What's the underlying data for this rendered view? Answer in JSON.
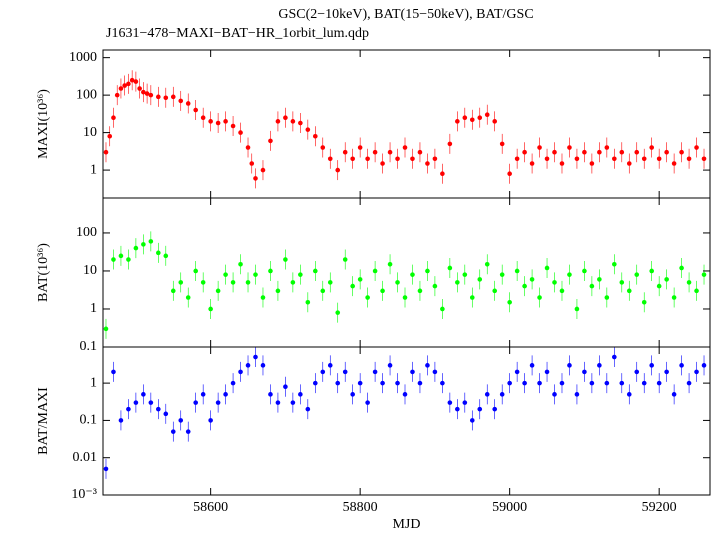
{
  "chart_data": [
    {
      "type": "scatter",
      "title": "GSC(2−10keV), BAT(15−50keV), BAT/GSC",
      "subtitle": "J1631−478−MAXI−BAT−HR_1orbit_lum.qdp",
      "ylabel": "MAXI(10³⁶)",
      "color": "#ff0000",
      "log_y": true,
      "xlim": [
        58456,
        59268
      ],
      "ylim": [
        0.18,
        1600
      ],
      "yticks": [
        1,
        10,
        100,
        1000
      ],
      "x": [
        58460,
        58465,
        58470,
        58475,
        58480,
        58485,
        58490,
        58495,
        58500,
        58505,
        58510,
        58515,
        58520,
        58530,
        58540,
        58550,
        58560,
        58570,
        58580,
        58590,
        58600,
        58610,
        58620,
        58630,
        58640,
        58650,
        58655,
        58660,
        58670,
        58680,
        58690,
        58700,
        58710,
        58720,
        58730,
        58740,
        58750,
        58760,
        58770,
        58780,
        58790,
        58800,
        58810,
        58820,
        58830,
        58840,
        58850,
        58860,
        58870,
        58880,
        58890,
        58900,
        58910,
        58920,
        58930,
        58940,
        58950,
        58960,
        58970,
        58980,
        58990,
        59000,
        59010,
        59020,
        59030,
        59040,
        59050,
        59060,
        59070,
        59080,
        59090,
        59100,
        59110,
        59120,
        59130,
        59140,
        59150,
        59160,
        59170,
        59180,
        59190,
        59200,
        59210,
        59220,
        59230,
        59240,
        59250,
        59260
      ],
      "values": [
        3,
        8,
        25,
        100,
        150,
        180,
        200,
        250,
        230,
        150,
        120,
        110,
        100,
        90,
        85,
        90,
        70,
        60,
        40,
        25,
        20,
        18,
        20,
        15,
        10,
        4,
        1.5,
        0.6,
        1,
        6,
        20,
        25,
        20,
        18,
        12,
        8,
        4,
        2,
        1,
        3,
        2,
        4,
        2,
        3,
        1.5,
        3,
        2,
        4,
        2,
        3,
        1.5,
        2,
        0.8,
        5,
        20,
        25,
        22,
        25,
        30,
        20,
        5,
        0.8,
        2,
        3,
        1.5,
        4,
        2,
        3,
        1.5,
        4,
        2,
        3,
        1.5,
        3,
        4,
        2,
        3,
        1.5,
        3,
        2,
        4,
        2,
        3,
        1.5,
        3,
        2,
        4,
        2
      ]
    },
    {
      "type": "scatter",
      "ylabel": "BAT(10³⁶)",
      "color": "#00ff00",
      "log_y": true,
      "xlim": [
        58456,
        59268
      ],
      "ylim": [
        0.1,
        830
      ],
      "yticks": [
        0.1,
        1,
        10,
        100
      ],
      "x": [
        58460,
        58470,
        58480,
        58490,
        58500,
        58510,
        58520,
        58530,
        58540,
        58550,
        58560,
        58570,
        58580,
        58590,
        58600,
        58610,
        58620,
        58630,
        58640,
        58650,
        58660,
        58670,
        58680,
        58690,
        58700,
        58710,
        58720,
        58730,
        58740,
        58750,
        58760,
        58770,
        58780,
        58790,
        58800,
        58810,
        58820,
        58830,
        58840,
        58850,
        58860,
        58870,
        58880,
        58890,
        58900,
        58910,
        58920,
        58930,
        58940,
        58950,
        58960,
        58970,
        58980,
        58990,
        59000,
        59010,
        59020,
        59030,
        59040,
        59050,
        59060,
        59070,
        59080,
        59090,
        59100,
        59110,
        59120,
        59130,
        59140,
        59150,
        59160,
        59170,
        59180,
        59190,
        59200,
        59210,
        59220,
        59230,
        59240,
        59250,
        59260
      ],
      "values": [
        0.3,
        20,
        25,
        20,
        40,
        50,
        60,
        30,
        25,
        3,
        5,
        2,
        10,
        5,
        1,
        3,
        8,
        5,
        15,
        5,
        8,
        2,
        10,
        3,
        20,
        5,
        8,
        1.5,
        10,
        3,
        5,
        0.8,
        20,
        4,
        6,
        2,
        10,
        3,
        15,
        5,
        2,
        8,
        3,
        10,
        4,
        1,
        12,
        5,
        8,
        2,
        6,
        15,
        3,
        8,
        1.5,
        10,
        4,
        6,
        2,
        12,
        5,
        3,
        8,
        1,
        10,
        4,
        6,
        2,
        15,
        5,
        3,
        8,
        1.5,
        10,
        4,
        6,
        2,
        12,
        5,
        3,
        8
      ]
    },
    {
      "type": "scatter",
      "ylabel": "BAT/MAXI",
      "xlabel": "MJD",
      "color": "#0000ff",
      "log_y": true,
      "xlim": [
        58456,
        59268
      ],
      "ylim": [
        0.001,
        9.3
      ],
      "yticks": [
        {
          "value": 0.001,
          "label": "10⁻³"
        },
        0.01,
        0.1,
        1
      ],
      "xticks": [
        58600,
        58800,
        59000,
        59200
      ],
      "x": [
        58460,
        58470,
        58480,
        58490,
        58500,
        58510,
        58520,
        58530,
        58540,
        58550,
        58560,
        58570,
        58580,
        58590,
        58600,
        58610,
        58620,
        58630,
        58640,
        58650,
        58660,
        58670,
        58680,
        58690,
        58700,
        58710,
        58720,
        58730,
        58740,
        58750,
        58760,
        58770,
        58780,
        58790,
        58800,
        58810,
        58820,
        58830,
        58840,
        58850,
        58860,
        58870,
        58880,
        58890,
        58900,
        58910,
        58920,
        58930,
        58940,
        58950,
        58960,
        58970,
        58980,
        58990,
        59000,
        59010,
        59020,
        59030,
        59040,
        59050,
        59060,
        59070,
        59080,
        59090,
        59100,
        59110,
        59120,
        59130,
        59140,
        59150,
        59160,
        59170,
        59180,
        59190,
        59200,
        59210,
        59220,
        59230,
        59240,
        59250,
        59260
      ],
      "values": [
        0.005,
        2,
        0.1,
        0.2,
        0.3,
        0.5,
        0.3,
        0.2,
        0.15,
        0.05,
        0.1,
        0.05,
        0.3,
        0.5,
        0.1,
        0.3,
        0.5,
        1,
        2,
        3,
        5,
        3,
        0.5,
        0.3,
        0.8,
        0.3,
        0.5,
        0.2,
        1,
        2,
        3,
        1,
        2,
        0.5,
        1,
        0.3,
        2,
        1,
        3,
        1,
        0.5,
        2,
        1,
        3,
        2,
        1,
        0.3,
        0.2,
        0.3,
        0.1,
        0.2,
        0.5,
        0.2,
        0.5,
        1,
        2,
        1,
        3,
        1,
        2,
        0.5,
        1,
        3,
        0.5,
        2,
        1,
        3,
        1,
        5,
        1,
        0.5,
        2,
        1,
        3,
        1,
        2,
        0.5,
        3,
        1,
        2,
        3
      ]
    }
  ]
}
